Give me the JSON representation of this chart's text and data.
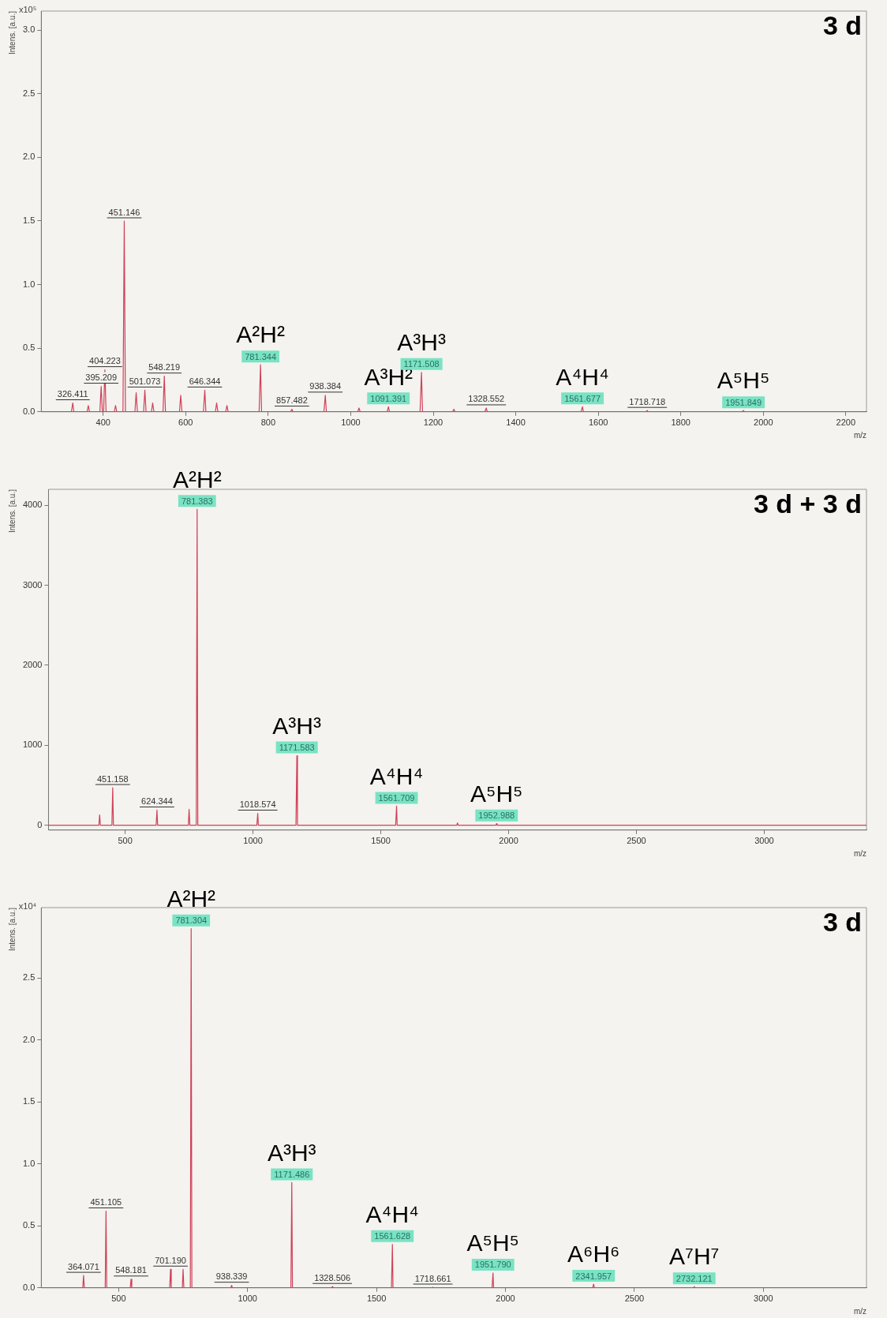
{
  "chart_data": [
    {
      "type": "line",
      "title": "3 d",
      "xlabel": "m/z",
      "ylabel": "Intens. [a.u.]",
      "xlim": [
        250,
        2250
      ],
      "ylim": [
        0,
        3.15
      ],
      "xticks": [
        400,
        600,
        800,
        1000,
        1200,
        1400,
        1600,
        1800,
        2000,
        2200
      ],
      "yticks": [
        {
          "value": 0,
          "label": "0.0"
        },
        {
          "value": 0.5,
          "label": "0.5"
        },
        {
          "value": 1,
          "label": "1.0"
        },
        {
          "value": 1.5,
          "label": "1.5"
        },
        {
          "value": 2,
          "label": "2.0"
        },
        {
          "value": 2.5,
          "label": "2.5"
        },
        {
          "value": 3,
          "label": "3.0"
        }
      ],
      "grid": false,
      "legend": false,
      "marker": "none",
      "line_style": "solid",
      "series": [
        {
          "color": "#d0405a",
          "x": [
            250,
            323,
            326.411,
            329,
            361,
            364,
            367,
            392,
            395.209,
            398,
            401,
            404.223,
            407,
            427,
            430,
            433,
            448,
            451.146,
            454,
            477,
            480,
            483,
            498,
            501.073,
            504,
            517,
            520,
            523,
            545,
            548.219,
            551,
            585,
            588,
            591,
            643,
            646.344,
            649,
            672,
            675,
            678,
            697,
            700,
            703,
            778,
            781.344,
            784,
            854,
            857.482,
            860,
            935,
            938.384,
            941,
            1017,
            1020,
            1023,
            1088,
            1091.391,
            1094,
            1168,
            1171.508,
            1174,
            1247,
            1250,
            1253,
            1325,
            1328.552,
            1331,
            1558,
            1561.677,
            1564,
            1715,
            1718.718,
            1721,
            1948,
            1951.849,
            1954,
            2250
          ],
          "values": [
            0,
            0,
            0.07,
            0,
            0,
            0.05,
            0,
            0,
            0.2,
            0,
            0,
            0.33,
            0,
            0,
            0.05,
            0,
            0,
            1.5,
            0,
            0,
            0.15,
            0,
            0,
            0.17,
            0,
            0,
            0.07,
            0,
            0,
            0.28,
            0,
            0,
            0.13,
            0,
            0,
            0.17,
            0,
            0,
            0.07,
            0,
            0,
            0.05,
            0,
            0,
            0.37,
            0,
            0,
            0.02,
            0,
            0,
            0.13,
            0,
            0,
            0.03,
            0,
            0,
            0.04,
            0,
            0,
            0.31,
            0,
            0,
            0.02,
            0,
            0,
            0.03,
            0,
            0,
            0.04,
            0,
            0,
            0.01,
            0,
            0,
            0.01,
            0,
            0
          ]
        }
      ],
      "annotations": [
        "x10⁵",
        {
          "text": "326.411",
          "x": 326.411,
          "y": 0.07
        },
        {
          "text": "395.209",
          "x": 395.209,
          "y": 0.2
        },
        {
          "text": "404.223",
          "x": 404.223,
          "y": 0.33
        },
        {
          "text": "451.146",
          "x": 451.146,
          "y": 1.5
        },
        {
          "text": "501.073",
          "x": 501.073,
          "y": 0.17
        },
        {
          "text": "548.219",
          "x": 548.219,
          "y": 0.28
        },
        {
          "text": "646.344",
          "x": 646.344,
          "y": 0.17
        },
        {
          "text": "781.344",
          "x": 781.344,
          "y": 0.37
        },
        {
          "text": "A²H²",
          "x": 781.344,
          "y": 0.37
        },
        {
          "text": "857.482",
          "x": 857.482,
          "y": 0.02
        },
        {
          "text": "938.384",
          "x": 938.384,
          "y": 0.13
        },
        {
          "text": "1091.391",
          "x": 1091.391,
          "y": 0.04
        },
        {
          "text": "A³H²",
          "x": 1091.391,
          "y": 0.04
        },
        {
          "text": "1171.508",
          "x": 1171.508,
          "y": 0.31
        },
        {
          "text": "A³H³",
          "x": 1171.508,
          "y": 0.31
        },
        {
          "text": "1328.552",
          "x": 1328.552,
          "y": 0.03
        },
        {
          "text": "1561.677",
          "x": 1561.677,
          "y": 0.04
        },
        {
          "text": "A⁴H⁴",
          "x": 1561.677,
          "y": 0.04
        },
        {
          "text": "1718.718",
          "x": 1718.718,
          "y": 0.01
        },
        {
          "text": "1951.849",
          "x": 1951.849,
          "y": 0.01
        },
        {
          "text": "A⁵H⁵",
          "x": 1951.849,
          "y": 0.01
        }
      ]
    },
    {
      "type": "line",
      "title": "3 d + 3 d",
      "xlabel": "m/z",
      "ylabel": "Intens. [a.u.]",
      "xlim": [
        200,
        3400
      ],
      "ylim": [
        -60,
        4200
      ],
      "xticks": [
        500,
        1000,
        1500,
        2000,
        2500,
        3000
      ],
      "yticks": [
        0,
        1000,
        2000,
        3000,
        4000
      ],
      "grid": false,
      "legend": false,
      "marker": "none",
      "line_style": "solid",
      "series": [
        {
          "color": "#d0405a",
          "x": [
            200,
            397,
            400,
            403,
            448,
            451.158,
            454,
            621,
            624.344,
            627,
            747,
            750,
            753,
            778,
            781.383,
            784,
            1015,
            1018.574,
            1021,
            1168,
            1171.583,
            1174,
            1558,
            1561.709,
            1564,
            1797,
            1800,
            1803,
            1949,
            1952.988,
            1955,
            3400
          ],
          "values": [
            0,
            0,
            130,
            0,
            0,
            470,
            0,
            0,
            190,
            0,
            0,
            200,
            0,
            0,
            3950,
            0,
            0,
            150,
            0,
            0,
            870,
            0,
            0,
            240,
            0,
            0,
            30,
            0,
            0,
            20,
            0,
            0
          ]
        }
      ],
      "annotations": [
        {
          "text": "451.158",
          "x": 451.158,
          "y": 470
        },
        {
          "text": "624.344",
          "x": 624.344,
          "y": 190
        },
        {
          "text": "781.383",
          "x": 781.383,
          "y": 3950
        },
        {
          "text": "A²H²",
          "x": 781.383,
          "y": 3950
        },
        {
          "text": "1018.574",
          "x": 1018.574,
          "y": 150
        },
        {
          "text": "1171.583",
          "x": 1171.583,
          "y": 870
        },
        {
          "text": "A³H³",
          "x": 1171.583,
          "y": 870
        },
        {
          "text": "1561.709",
          "x": 1561.709,
          "y": 240
        },
        {
          "text": "A⁴H⁴",
          "x": 1561.709,
          "y": 240
        },
        {
          "text": "1952.988",
          "x": 1952.988,
          "y": 20
        },
        {
          "text": "A⁵H⁵",
          "x": 1952.988,
          "y": 20
        }
      ]
    },
    {
      "type": "line",
      "title": "3 d",
      "xlabel": "m/z",
      "ylabel": "Intens. [a.u.]",
      "xlim": [
        200,
        3400
      ],
      "ylim": [
        0,
        3.07
      ],
      "xticks": [
        500,
        1000,
        1500,
        2000,
        2500,
        3000
      ],
      "yticks": [
        {
          "value": 0,
          "label": "0.0"
        },
        {
          "value": 0.5,
          "label": "0.5"
        },
        {
          "value": 1,
          "label": "1.0"
        },
        {
          "value": 1.5,
          "label": "1.5"
        },
        {
          "value": 2,
          "label": "2.0"
        },
        {
          "value": 2.5,
          "label": "2.5"
        }
      ],
      "grid": false,
      "legend": false,
      "marker": "none",
      "line_style": "solid",
      "series": [
        {
          "color": "#d0405a",
          "x": [
            200,
            361,
            364.071,
            367,
            448,
            451.105,
            454,
            545,
            548.181,
            551,
            698,
            701.19,
            704,
            747,
            750,
            753,
            778,
            781.304,
            784,
            935,
            938.339,
            941,
            1168,
            1171.486,
            1174,
            1325,
            1328.506,
            1331,
            1558,
            1561.628,
            1564,
            1715,
            1718.661,
            1721,
            1948,
            1951.79,
            1954,
            2338,
            2341.957,
            2345,
            2729,
            2732.121,
            2735,
            3400
          ],
          "values": [
            0,
            0,
            0.1,
            0,
            0,
            0.62,
            0,
            0,
            0.07,
            0,
            0,
            0.15,
            0,
            0,
            0.15,
            0,
            0,
            2.9,
            0,
            0,
            0.02,
            0,
            0,
            0.85,
            0,
            0,
            0.01,
            0,
            0,
            0.35,
            0,
            0,
            0.005,
            0,
            0,
            0.12,
            0,
            0,
            0.03,
            0,
            0,
            0.01,
            0,
            0
          ]
        }
      ],
      "annotations": [
        "x10⁴",
        {
          "text": "364.071",
          "x": 364.071,
          "y": 0.1
        },
        {
          "text": "451.105",
          "x": 451.105,
          "y": 0.62
        },
        {
          "text": "548.181",
          "x": 548.181,
          "y": 0.07
        },
        {
          "text": "701.190",
          "x": 701.19,
          "y": 0.15
        },
        {
          "text": "781.304",
          "x": 781.304,
          "y": 2.9
        },
        {
          "text": "A²H²",
          "x": 781.304,
          "y": 2.9
        },
        {
          "text": "938.339",
          "x": 938.339,
          "y": 0.02
        },
        {
          "text": "1171.486",
          "x": 1171.486,
          "y": 0.85
        },
        {
          "text": "A³H³",
          "x": 1171.486,
          "y": 0.85
        },
        {
          "text": "1328.506",
          "x": 1328.506,
          "y": 0.01
        },
        {
          "text": "1561.628",
          "x": 1561.628,
          "y": 0.35
        },
        {
          "text": "A⁴H⁴",
          "x": 1561.628,
          "y": 0.35
        },
        {
          "text": "1718.661",
          "x": 1718.661,
          "y": 0.005
        },
        {
          "text": "1951.790",
          "x": 1951.79,
          "y": 0.12
        },
        {
          "text": "A⁵H⁵",
          "x": 1951.79,
          "y": 0.12
        },
        {
          "text": "2341.957",
          "x": 2341.957,
          "y": 0.03
        },
        {
          "text": "A⁶H⁶",
          "x": 2341.957,
          "y": 0.03
        },
        {
          "text": "2732.121",
          "x": 2732.121,
          "y": 0.01
        },
        {
          "text": "A⁷H⁷",
          "x": 2732.121,
          "y": 0.01
        }
      ]
    }
  ]
}
